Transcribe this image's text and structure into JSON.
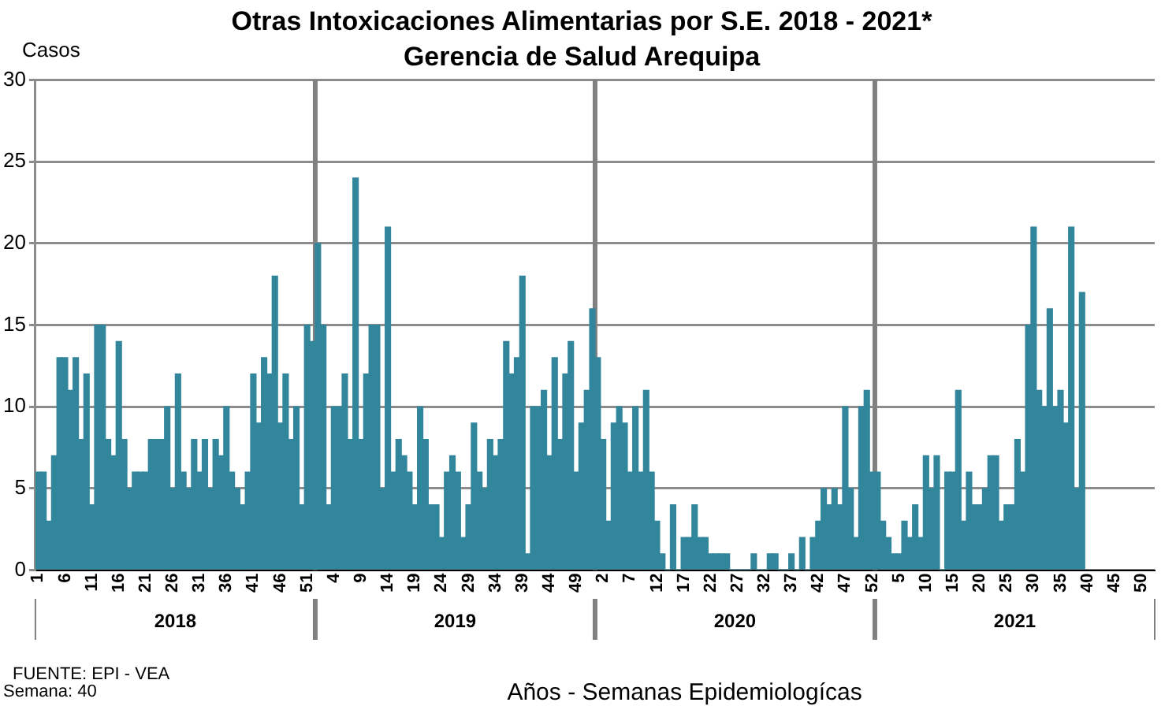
{
  "chart_data": {
    "type": "bar",
    "title": "Otras Intoxicaciones Alimentarias por S.E. 2018 - 2021*",
    "subtitle": "Gerencia de Salud Arequipa",
    "ylabel": "Casos",
    "xlabel": "Años - Semanas Epidemiologícas",
    "annotations": [
      "FUENTE: EPI - VEA",
      "Semana: 40",
      "2018",
      "2019",
      "2020",
      "2021"
    ],
    "categories": [
      "1",
      null,
      null,
      null,
      null,
      "6",
      null,
      null,
      null,
      null,
      "11",
      null,
      null,
      null,
      null,
      "16",
      null,
      null,
      null,
      null,
      "21",
      null,
      null,
      null,
      null,
      "26",
      null,
      null,
      null,
      null,
      "31",
      null,
      null,
      null,
      null,
      "36",
      null,
      null,
      null,
      null,
      "41",
      null,
      null,
      null,
      null,
      "46",
      null,
      null,
      null,
      null,
      "51",
      null,
      null,
      null,
      null,
      "4",
      null,
      null,
      null,
      null,
      "9",
      null,
      null,
      null,
      null,
      "14",
      null,
      null,
      null,
      null,
      "19",
      null,
      null,
      null,
      null,
      "24",
      null,
      null,
      null,
      null,
      "29",
      null,
      null,
      null,
      null,
      "34",
      null,
      null,
      null,
      null,
      "39",
      null,
      null,
      null,
      null,
      "44",
      null,
      null,
      null,
      null,
      "49",
      null,
      null,
      null,
      null,
      "2",
      null,
      null,
      null,
      null,
      "7",
      null,
      null,
      null,
      null,
      "12",
      null,
      null,
      null,
      null,
      "17",
      null,
      null,
      null,
      null,
      "22",
      null,
      null,
      null,
      null,
      "27",
      null,
      null,
      null,
      null,
      "32",
      null,
      null,
      null,
      null,
      "37",
      null,
      null,
      null,
      null,
      "42",
      null,
      null,
      null,
      null,
      "47",
      null,
      null,
      null,
      null,
      "52",
      null,
      null,
      null,
      null,
      "5",
      null,
      null,
      null,
      null,
      "10",
      null,
      null,
      null,
      null,
      "15",
      null,
      null,
      null,
      null,
      "20",
      null,
      null,
      null,
      null,
      "25",
      null,
      null,
      null,
      null,
      "30",
      null,
      null,
      null,
      null,
      "35",
      null,
      null,
      null,
      null,
      "40",
      null,
      null,
      null,
      null,
      "45",
      null,
      null,
      null,
      null,
      "50",
      null,
      null
    ],
    "series": [
      {
        "color": "#31869b",
        "values": [
          6,
          6,
          3,
          7,
          13,
          13,
          11,
          13,
          8,
          12,
          4,
          15,
          15,
          8,
          7,
          14,
          8,
          5,
          6,
          6,
          6,
          8,
          8,
          8,
          10,
          5,
          12,
          6,
          5,
          8,
          6,
          8,
          5,
          8,
          7,
          10,
          6,
          5,
          4,
          6,
          12,
          9,
          13,
          12,
          18,
          9,
          12,
          8,
          10,
          4,
          15,
          14,
          20,
          15,
          4,
          10,
          10,
          12,
          8,
          24,
          8,
          12,
          15,
          15,
          5,
          21,
          6,
          8,
          7,
          6,
          4,
          10,
          8,
          4,
          4,
          2,
          6,
          7,
          6,
          2,
          4,
          9,
          6,
          5,
          8,
          7,
          8,
          14,
          12,
          13,
          18,
          1,
          10,
          10,
          11,
          7,
          13,
          8,
          12,
          14,
          6,
          9,
          11,
          16,
          13,
          8,
          3,
          9,
          10,
          9,
          6,
          10,
          6,
          11,
          6,
          3,
          1,
          0,
          4,
          0,
          2,
          2,
          4,
          2,
          2,
          1,
          1,
          1,
          1,
          0,
          0,
          0,
          0,
          1,
          0,
          0,
          1,
          1,
          0,
          0,
          1,
          0,
          2,
          0,
          2,
          3,
          5,
          4,
          5,
          4,
          10,
          5,
          2,
          10,
          11,
          6,
          6,
          3,
          2,
          1,
          1,
          3,
          2,
          4,
          2,
          7,
          5,
          7,
          0,
          6,
          6,
          11,
          3,
          6,
          4,
          4,
          5,
          7,
          7,
          3,
          4,
          4,
          8,
          6,
          15,
          21,
          11,
          10,
          16,
          10,
          11,
          9,
          21,
          5,
          17,
          null,
          null,
          null,
          null,
          null,
          null,
          null,
          null,
          null,
          null,
          null,
          null,
          null
        ]
      }
    ],
    "ylim": [
      0,
      30
    ],
    "yticks": [
      0,
      5,
      10,
      15,
      20,
      25,
      30
    ],
    "grid": "y",
    "legend": false
  }
}
